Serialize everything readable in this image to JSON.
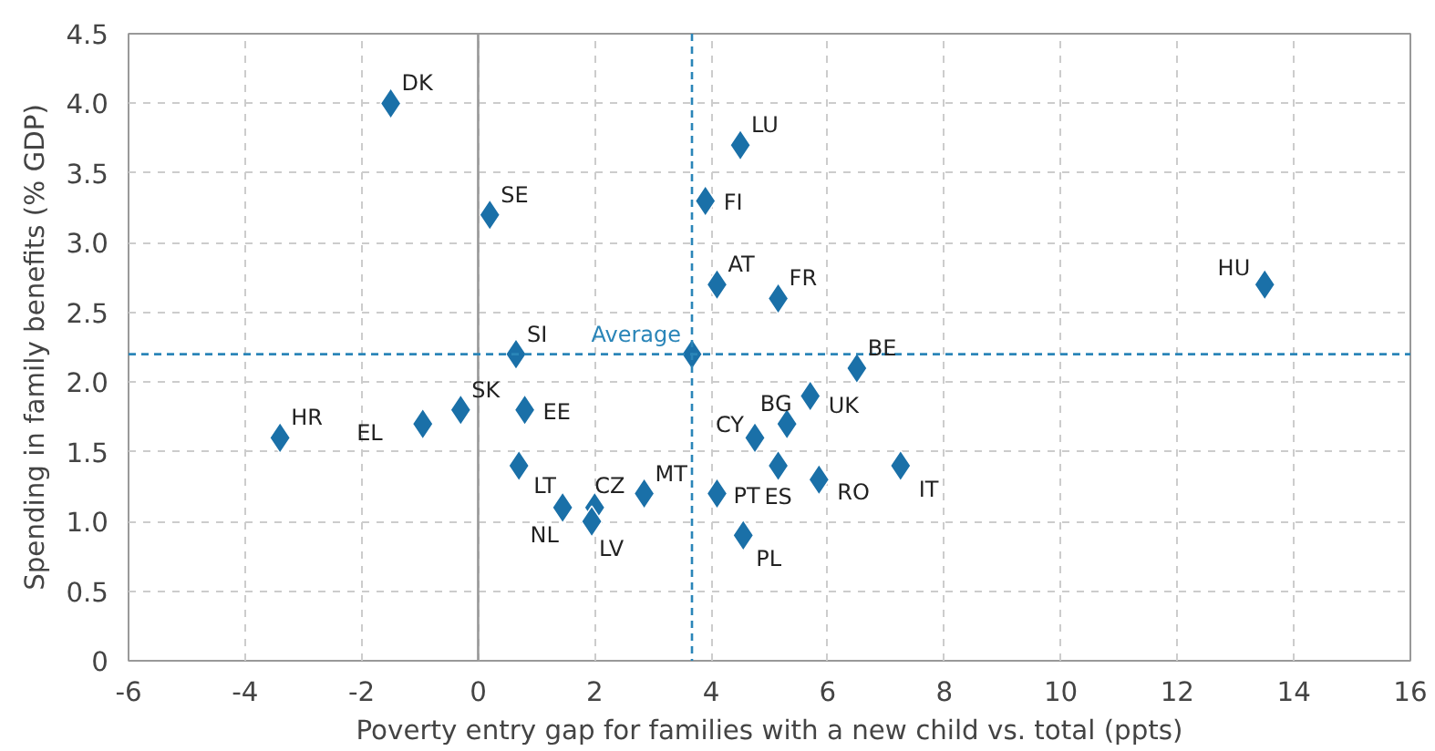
{
  "chart_data": {
    "type": "scatter",
    "xlabel": "Poverty entry gap for families with a new child vs. total (ppts)",
    "ylabel": "Spending in family benefits (% GDP)",
    "x": [
      -1.5,
      0.2,
      0.65,
      3.67,
      -0.3,
      -0.95,
      -3.4,
      0.8,
      0.7,
      1.45,
      2.0,
      1.95,
      2.85,
      4.1,
      4.55,
      3.9,
      4.5,
      4.1,
      5.15,
      6.5,
      5.7,
      5.3,
      4.75,
      5.15,
      5.85,
      7.25,
      13.5
    ],
    "values": [
      4.0,
      3.2,
      2.2,
      2.2,
      1.8,
      1.7,
      1.6,
      1.8,
      1.4,
      1.1,
      1.1,
      1.0,
      1.2,
      1.2,
      0.9,
      3.3,
      3.7,
      2.7,
      2.6,
      2.1,
      1.9,
      1.7,
      1.6,
      1.4,
      1.3,
      1.4,
      2.7
    ],
    "color": "#1a70a8",
    "marker": "diamond",
    "annotations": [
      {
        "text": "DK",
        "x": -1.5,
        "y": 4.0
      },
      {
        "text": "SE",
        "x": 0.2,
        "y": 3.2
      },
      {
        "text": "SI",
        "x": 0.65,
        "y": 2.2
      },
      {
        "text": "Average",
        "x": 3.67,
        "y": 2.2
      },
      {
        "text": "SK",
        "x": -0.3,
        "y": 1.8
      },
      {
        "text": "EL",
        "x": -0.95,
        "y": 1.7
      },
      {
        "text": "HR",
        "x": -3.4,
        "y": 1.6
      },
      {
        "text": "EE",
        "x": 0.8,
        "y": 1.8
      },
      {
        "text": "LT",
        "x": 0.7,
        "y": 1.4
      },
      {
        "text": "NL",
        "x": 1.45,
        "y": 1.1
      },
      {
        "text": "CZ",
        "x": 2.0,
        "y": 1.1
      },
      {
        "text": "LV",
        "x": 1.95,
        "y": 1.0
      },
      {
        "text": "MT",
        "x": 2.85,
        "y": 1.2
      },
      {
        "text": "PT",
        "x": 4.1,
        "y": 1.2
      },
      {
        "text": "PL",
        "x": 4.55,
        "y": 0.9
      },
      {
        "text": "FI",
        "x": 3.9,
        "y": 3.3
      },
      {
        "text": "LU",
        "x": 4.5,
        "y": 3.7
      },
      {
        "text": "AT",
        "x": 4.1,
        "y": 2.7
      },
      {
        "text": "FR",
        "x": 5.15,
        "y": 2.6
      },
      {
        "text": "BE",
        "x": 6.5,
        "y": 2.1
      },
      {
        "text": "UK",
        "x": 5.7,
        "y": 1.9
      },
      {
        "text": "BG",
        "x": 5.3,
        "y": 1.7
      },
      {
        "text": "CY",
        "x": 4.75,
        "y": 1.6
      },
      {
        "text": "ES",
        "x": 5.15,
        "y": 1.4
      },
      {
        "text": "RO",
        "x": 5.85,
        "y": 1.3
      },
      {
        "text": "IT",
        "x": 7.25,
        "y": 1.4
      },
      {
        "text": "HU",
        "x": 13.5,
        "y": 2.7
      }
    ],
    "ref_lines": [
      {
        "axis": "x",
        "value": 0,
        "label": null,
        "color": "#999999",
        "line_style": "solid"
      },
      {
        "axis": "x",
        "value": 3.67,
        "label": null,
        "color": "#2a85b8",
        "line_style": "dashed"
      },
      {
        "axis": "y",
        "value": 2.2,
        "label": null,
        "color": "#2a85b8",
        "line_style": "dashed"
      }
    ],
    "xlim": [
      -6,
      16
    ],
    "xticks": [
      -6,
      -4,
      -2,
      0,
      2,
      4,
      6,
      8,
      10,
      12,
      14,
      16
    ],
    "ylim": [
      0,
      4.5
    ],
    "yticks": [
      {
        "value": 0,
        "label": "0"
      },
      {
        "value": 0.5,
        "label": "0.5"
      },
      {
        "value": 1,
        "label": "1.0"
      },
      {
        "value": 1.5,
        "label": "1.5"
      },
      {
        "value": 2,
        "label": "2.0"
      },
      {
        "value": 2.5,
        "label": "2.5"
      },
      {
        "value": 3,
        "label": "3.0"
      },
      {
        "value": 3.5,
        "label": "3.5"
      },
      {
        "value": 4,
        "label": "4.0"
      },
      {
        "value": 4.5,
        "label": "4.5"
      }
    ],
    "grid": true
  }
}
